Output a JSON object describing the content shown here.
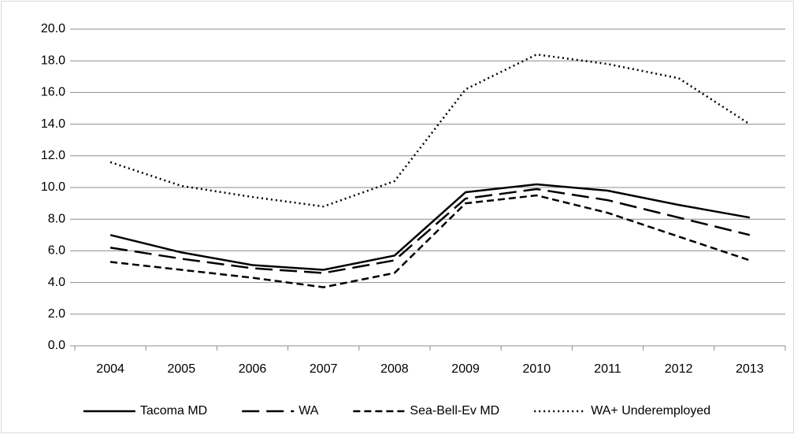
{
  "chart_data": {
    "type": "line",
    "categories": [
      "2004",
      "2005",
      "2006",
      "2007",
      "2008",
      "2009",
      "2010",
      "2011",
      "2012",
      "2013"
    ],
    "series": [
      {
        "name": "Tacoma MD",
        "color": "#000000",
        "dash": "solid",
        "values": [
          7.0,
          5.9,
          5.1,
          4.8,
          5.7,
          9.7,
          10.2,
          9.8,
          8.9,
          8.1
        ]
      },
      {
        "name": "WA",
        "color": "#000000",
        "dash": "long-dash",
        "values": [
          6.2,
          5.5,
          4.9,
          4.6,
          5.4,
          9.3,
          9.9,
          9.2,
          8.1,
          7.0
        ]
      },
      {
        "name": "Sea-Bell-Ev MD",
        "color": "#000000",
        "dash": "dash",
        "values": [
          5.3,
          4.8,
          4.3,
          3.7,
          4.6,
          9.0,
          9.5,
          8.4,
          6.9,
          5.4
        ]
      },
      {
        "name": "WA+ Underemployed",
        "color": "#000000",
        "dash": "dotted",
        "values": [
          11.6,
          10.1,
          9.4,
          8.8,
          10.4,
          16.2,
          18.4,
          17.8,
          16.9,
          14.0
        ]
      }
    ],
    "ylim": [
      0,
      20
    ],
    "yticks": [
      {
        "value": 0,
        "label": "0.0"
      },
      {
        "value": 2,
        "label": "2.0"
      },
      {
        "value": 4,
        "label": "4.0"
      },
      {
        "value": 6,
        "label": "6.0"
      },
      {
        "value": 8,
        "label": "8.0"
      },
      {
        "value": 10,
        "label": "10.0"
      },
      {
        "value": 12,
        "label": "12.0"
      },
      {
        "value": 14,
        "label": "14.0"
      },
      {
        "value": 16,
        "label": "16.0"
      },
      {
        "value": 18,
        "label": "18.0"
      },
      {
        "value": 20,
        "label": "20.0"
      }
    ],
    "grid": true,
    "legend": "bottom"
  }
}
